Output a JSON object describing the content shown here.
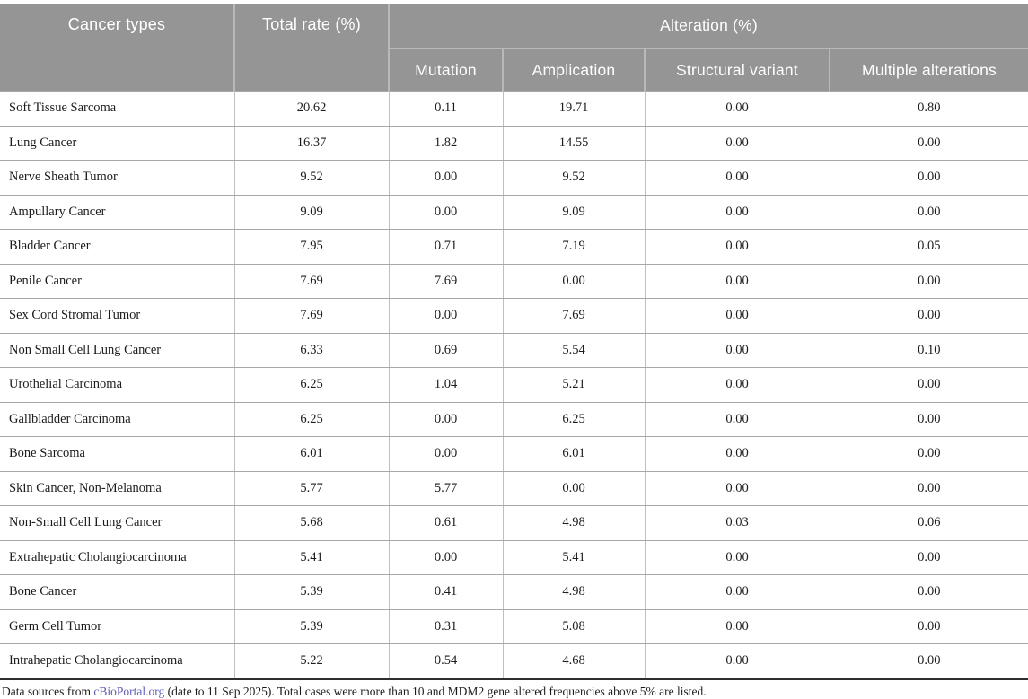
{
  "table": {
    "header": {
      "cancer_types": "Cancer types",
      "total_rate": "Total rate (%)",
      "alteration": "Alteration (%)",
      "sub_columns": [
        "Mutation",
        "Amplication",
        "Structural variant",
        "Multiple alterations"
      ]
    },
    "rows": [
      {
        "cancer_type": "Soft Tissue Sarcoma",
        "total_rate": "20.62",
        "mutation": "0.11",
        "amplification": "19.71",
        "structural_variant": "0.00",
        "multiple_alterations": "0.80"
      },
      {
        "cancer_type": "Lung Cancer",
        "total_rate": "16.37",
        "mutation": "1.82",
        "amplification": "14.55",
        "structural_variant": "0.00",
        "multiple_alterations": "0.00"
      },
      {
        "cancer_type": "Nerve Sheath Tumor",
        "total_rate": "9.52",
        "mutation": "0.00",
        "amplification": "9.52",
        "structural_variant": "0.00",
        "multiple_alterations": "0.00"
      },
      {
        "cancer_type": "Ampullary Cancer",
        "total_rate": "9.09",
        "mutation": "0.00",
        "amplification": "9.09",
        "structural_variant": "0.00",
        "multiple_alterations": "0.00"
      },
      {
        "cancer_type": "Bladder Cancer",
        "total_rate": "7.95",
        "mutation": "0.71",
        "amplification": "7.19",
        "structural_variant": "0.00",
        "multiple_alterations": "0.05"
      },
      {
        "cancer_type": "Penile Cancer",
        "total_rate": "7.69",
        "mutation": "7.69",
        "amplification": "0.00",
        "structural_variant": "0.00",
        "multiple_alterations": "0.00"
      },
      {
        "cancer_type": "Sex Cord Stromal Tumor",
        "total_rate": "7.69",
        "mutation": "0.00",
        "amplification": "7.69",
        "structural_variant": "0.00",
        "multiple_alterations": "0.00"
      },
      {
        "cancer_type": "Non Small Cell Lung Cancer",
        "total_rate": "6.33",
        "mutation": "0.69",
        "amplification": "5.54",
        "structural_variant": "0.00",
        "multiple_alterations": "0.10"
      },
      {
        "cancer_type": "Urothelial Carcinoma",
        "total_rate": "6.25",
        "mutation": "1.04",
        "amplification": "5.21",
        "structural_variant": "0.00",
        "multiple_alterations": "0.00"
      },
      {
        "cancer_type": "Gallbladder Carcinoma",
        "total_rate": "6.25",
        "mutation": "0.00",
        "amplification": "6.25",
        "structural_variant": "0.00",
        "multiple_alterations": "0.00"
      },
      {
        "cancer_type": "Bone Sarcoma",
        "total_rate": "6.01",
        "mutation": "0.00",
        "amplification": "6.01",
        "structural_variant": "0.00",
        "multiple_alterations": "0.00"
      },
      {
        "cancer_type": "Skin Cancer, Non-Melanoma",
        "total_rate": "5.77",
        "mutation": "5.77",
        "amplification": "0.00",
        "structural_variant": "0.00",
        "multiple_alterations": "0.00"
      },
      {
        "cancer_type": "Non-Small Cell Lung Cancer",
        "total_rate": "5.68",
        "mutation": "0.61",
        "amplification": "4.98",
        "structural_variant": "0.03",
        "multiple_alterations": "0.06"
      },
      {
        "cancer_type": "Extrahepatic Cholangiocarcinoma",
        "total_rate": "5.41",
        "mutation": "0.00",
        "amplification": "5.41",
        "structural_variant": "0.00",
        "multiple_alterations": "0.00"
      },
      {
        "cancer_type": "Bone Cancer",
        "total_rate": "5.39",
        "mutation": "0.41",
        "amplification": "4.98",
        "structural_variant": "0.00",
        "multiple_alterations": "0.00"
      },
      {
        "cancer_type": "Germ Cell Tumor",
        "total_rate": "5.39",
        "mutation": "0.31",
        "amplification": "5.08",
        "structural_variant": "0.00",
        "multiple_alterations": "0.00"
      },
      {
        "cancer_type": "Intrahepatic Cholangiocarcinoma",
        "total_rate": "5.22",
        "mutation": "0.54",
        "amplification": "4.68",
        "structural_variant": "0.00",
        "multiple_alterations": "0.00"
      }
    ]
  },
  "footnote": {
    "prefix": "Data sources from ",
    "link": "cBioPortal.org",
    "suffix": " (date to 11 Sep 2025). Total cases were more than 10 and MDM2 gene altered frequencies above 5% are listed."
  },
  "colors": {
    "header_background": "#959595",
    "header_text": "#ffffff",
    "link": "#5b5bb5",
    "body_text": "#1c1c1c",
    "table_bottom_border": "#2f2f2f"
  }
}
